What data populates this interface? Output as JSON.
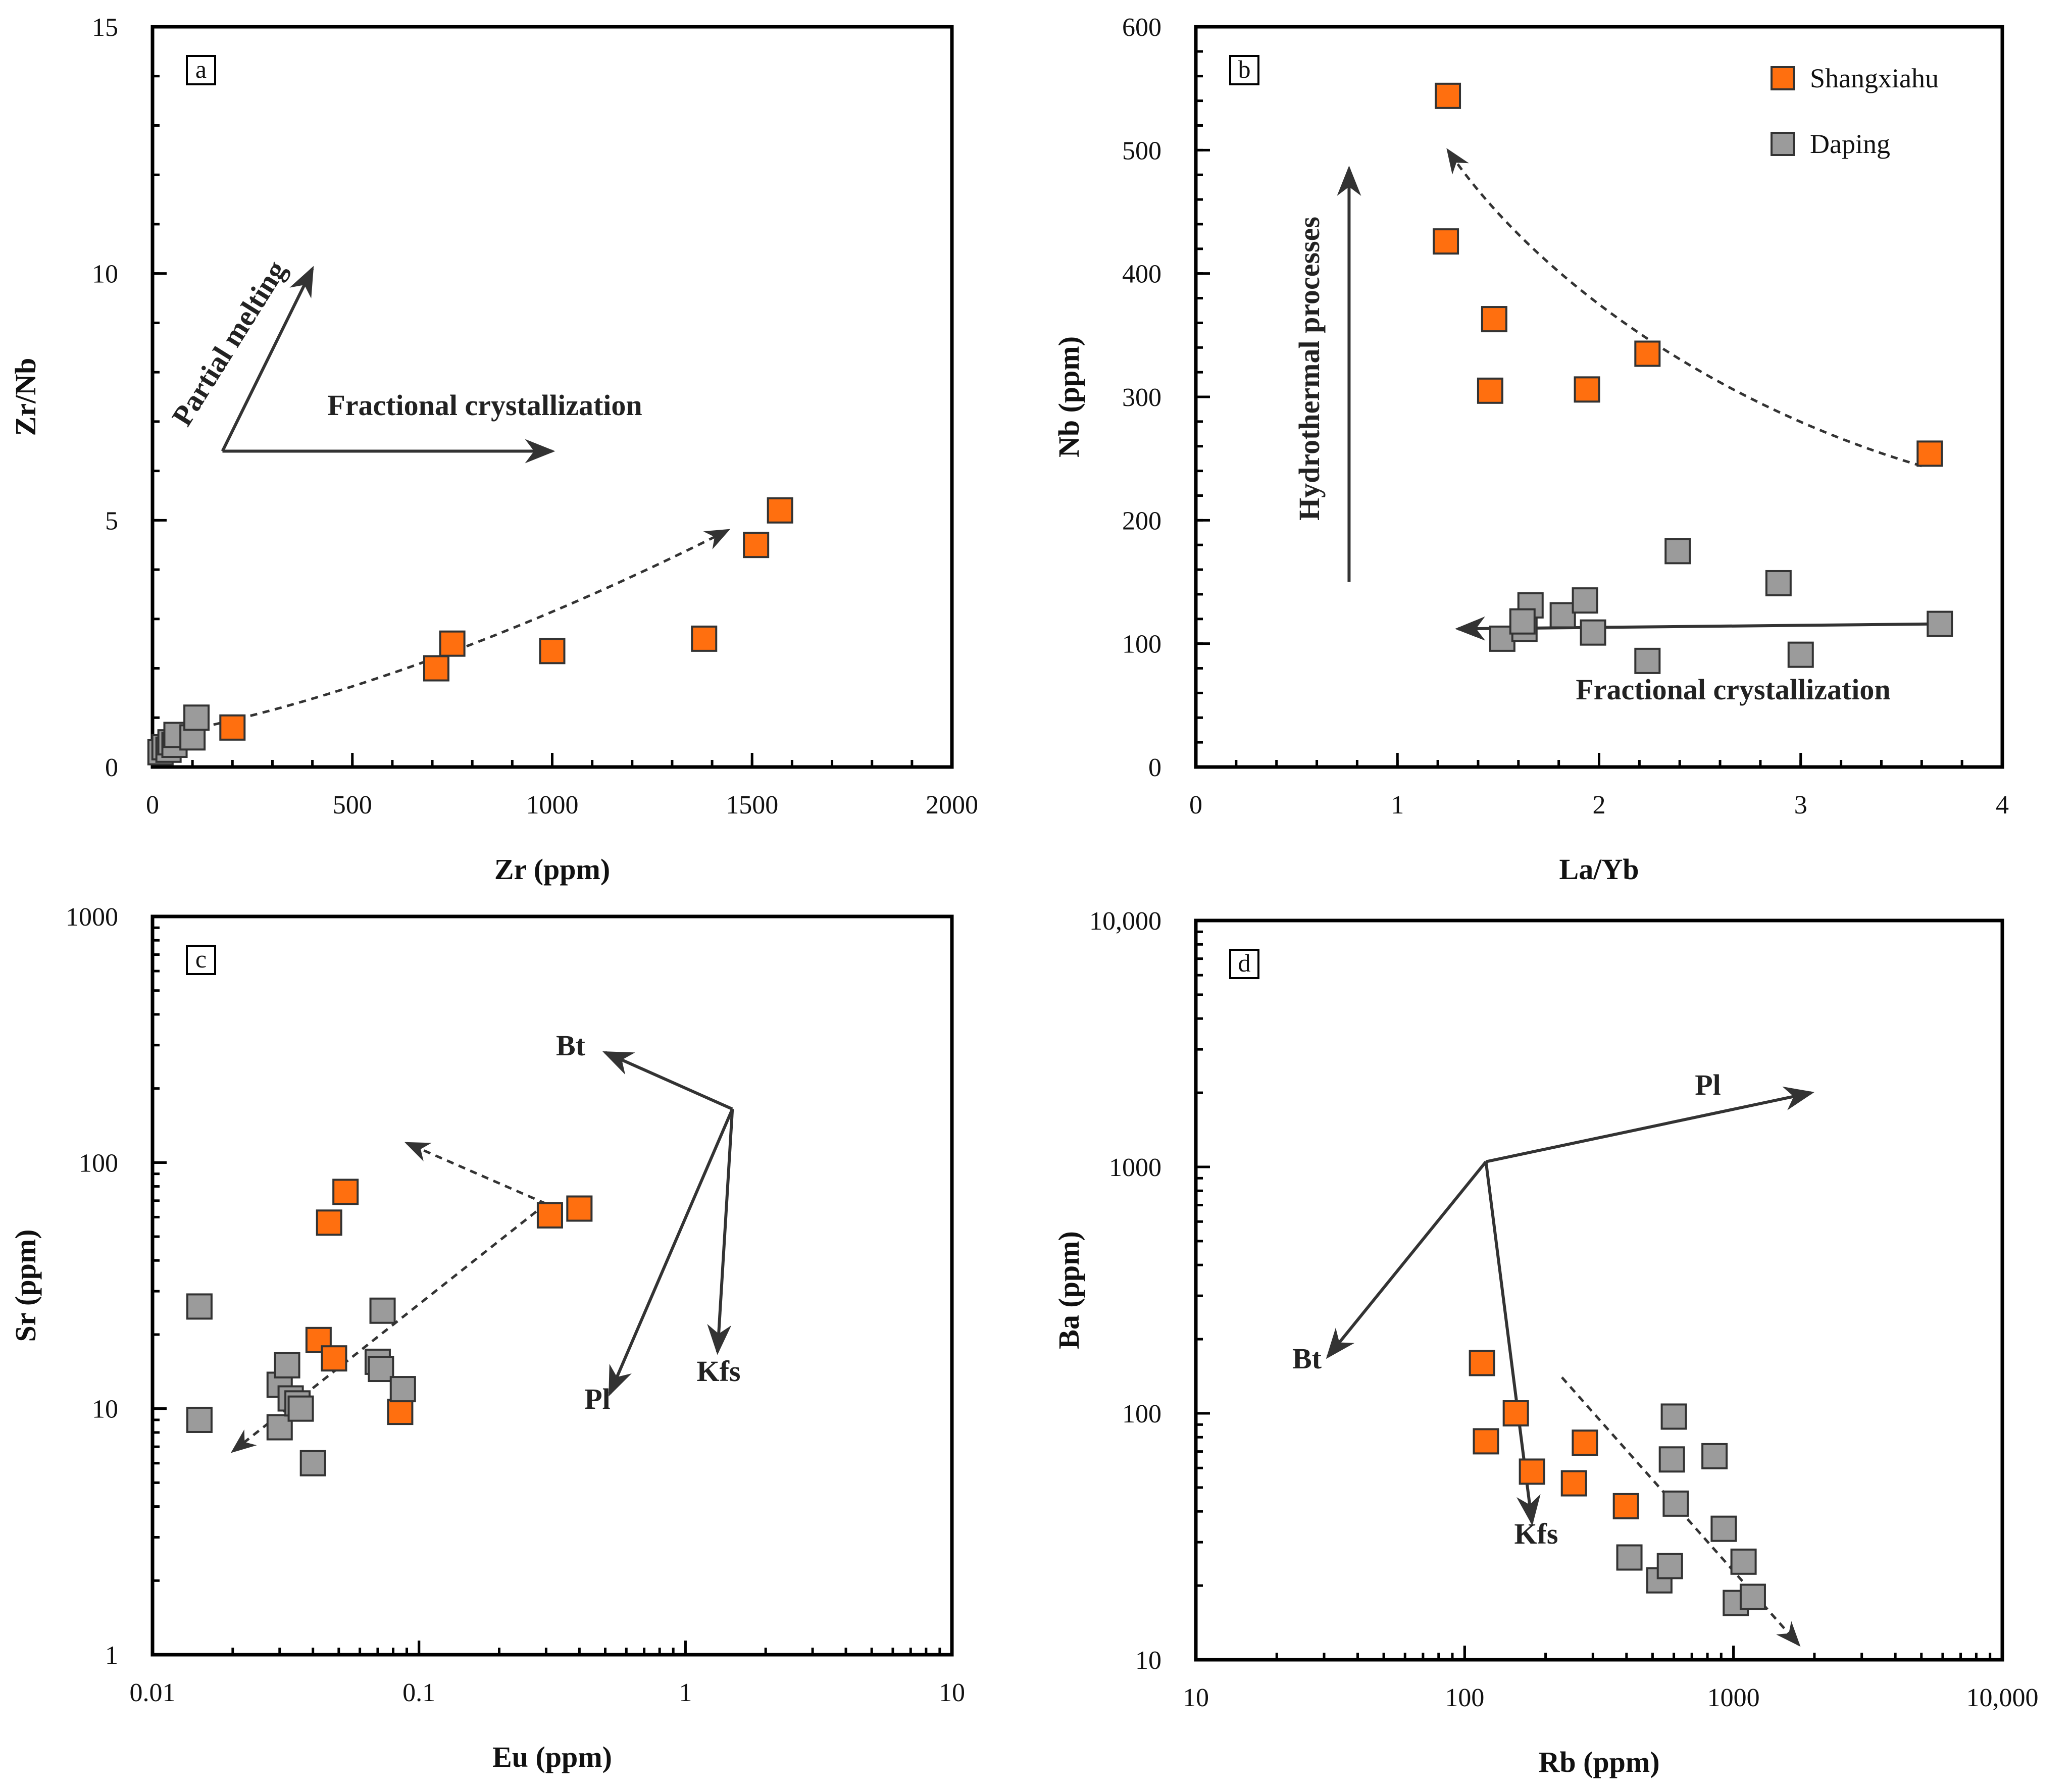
{
  "colors": {
    "shangxiahu": "#ff6f0f",
    "daping": "#9b9b9b",
    "marker_edge": "#333333",
    "arrow": "#333333"
  },
  "chart_data": [
    {
      "panel": "a",
      "type": "scatter",
      "xlabel": "Zr (ppm)",
      "ylabel": "Zr/Nb",
      "xscale": "linear",
      "yscale": "linear",
      "xlim": [
        0,
        2000
      ],
      "ylim": [
        0,
        15
      ],
      "xticks": [
        0,
        500,
        1000,
        1500,
        2000
      ],
      "xtick_labels": [
        "0",
        "500",
        "1000",
        "1500",
        "2000"
      ],
      "yticks": [
        0,
        5,
        10,
        15
      ],
      "ytick_labels": [
        "0",
        "5",
        "10",
        "15"
      ],
      "series": [
        {
          "name": "Shangxiahu",
          "x": [
            200,
            710,
            750,
            1000,
            1380,
            1510,
            1570
          ],
          "y": [
            0.8,
            2.0,
            2.5,
            2.35,
            2.6,
            4.5,
            5.2
          ]
        },
        {
          "name": "Daping",
          "x": [
            20,
            30,
            40,
            45,
            55,
            60,
            100,
            110
          ],
          "y": [
            0.3,
            0.4,
            0.35,
            0.5,
            0.45,
            0.65,
            0.6,
            1.0
          ]
        }
      ],
      "annotations": [
        {
          "text": "Partial melting",
          "kind": "arrow",
          "from": [
            175,
            6.4
          ],
          "to": [
            400,
            10.1
          ]
        },
        {
          "text": "Fractional crystallization",
          "kind": "arrow",
          "from": [
            175,
            6.4
          ],
          "to": [
            1000,
            6.4
          ]
        },
        {
          "text": "",
          "kind": "dashed-curve",
          "points": [
            [
              60,
              0.7
            ],
            [
              500,
              1.4
            ],
            [
              1000,
              3.0
            ],
            [
              1440,
              4.8
            ]
          ]
        }
      ]
    },
    {
      "panel": "b",
      "type": "scatter",
      "xlabel": "La/Yb",
      "ylabel": "Nb (ppm)",
      "xscale": "linear",
      "yscale": "linear",
      "xlim": [
        0,
        4
      ],
      "ylim": [
        0,
        600
      ],
      "xticks": [
        0,
        1,
        2,
        3,
        4
      ],
      "xtick_labels": [
        "0",
        "1",
        "2",
        "3",
        "4"
      ],
      "yticks": [
        0,
        100,
        200,
        300,
        400,
        500,
        600
      ],
      "ytick_labels": [
        "0",
        "100",
        "200",
        "300",
        "400",
        "500",
        "600"
      ],
      "legend": {
        "position": "top-right",
        "entries": [
          "Shangxiahu",
          "Daping"
        ]
      },
      "series": [
        {
          "name": "Shangxiahu",
          "x": [
            1.25,
            1.24,
            1.48,
            1.46,
            1.94,
            2.24,
            3.64
          ],
          "y": [
            544,
            426,
            363,
            305,
            306,
            335,
            254
          ]
        },
        {
          "name": "Daping",
          "x": [
            1.52,
            1.63,
            1.66,
            1.62,
            1.82,
            1.93,
            1.97,
            2.24,
            2.39,
            2.89,
            3.0,
            3.69
          ],
          "y": [
            104,
            112,
            131,
            118,
            123,
            135,
            109,
            86,
            175,
            149,
            91,
            116
          ]
        }
      ],
      "annotations": [
        {
          "text": "Hydrothermal processes",
          "kind": "arrow",
          "from": [
            0.76,
            150
          ],
          "to": [
            0.76,
            485
          ]
        },
        {
          "text": "Fractional crystallization",
          "kind": "arrow",
          "from": [
            3.7,
            116
          ],
          "to": [
            1.3,
            112
          ]
        },
        {
          "text": "",
          "kind": "dashed-curve",
          "points": [
            [
              3.6,
              244
            ],
            [
              2.6,
              292
            ],
            [
              1.7,
              392
            ],
            [
              1.25,
              500
            ]
          ]
        }
      ]
    },
    {
      "panel": "c",
      "type": "scatter",
      "xlabel": "Eu (ppm)",
      "ylabel": "Sr (ppm)",
      "xscale": "log",
      "yscale": "log",
      "xlim": [
        0.01,
        10
      ],
      "ylim": [
        1,
        1000
      ],
      "xticks": [
        0.01,
        0.1,
        1,
        10
      ],
      "xtick_labels": [
        "0.01",
        "0.1",
        "1",
        "10"
      ],
      "yticks": [
        1,
        10,
        100,
        1000
      ],
      "ytick_labels": [
        "1",
        "10",
        "100",
        "1000"
      ],
      "series": [
        {
          "name": "Shangxiahu",
          "x": [
            0.042,
            0.046,
            0.048,
            0.053,
            0.085,
            0.31,
            0.4
          ],
          "y": [
            19,
            57,
            16,
            76,
            9.7,
            61,
            65
          ]
        },
        {
          "name": "Daping",
          "x": [
            0.015,
            0.015,
            0.03,
            0.03,
            0.032,
            0.033,
            0.035,
            0.036,
            0.04,
            0.07,
            0.072,
            0.073,
            0.087
          ],
          "y": [
            26,
            9,
            8.4,
            12.5,
            15,
            11,
            10.5,
            10,
            6,
            15.5,
            14.5,
            25,
            12
          ]
        }
      ],
      "annotations": [
        {
          "text": "Bt",
          "kind": "arrow",
          "from": [
            1.5,
            165
          ],
          "to": [
            0.5,
            280
          ]
        },
        {
          "text": "Pl",
          "kind": "arrow",
          "from": [
            1.5,
            165
          ],
          "to": [
            0.52,
            11.5
          ]
        },
        {
          "text": "Kfs",
          "kind": "arrow",
          "from": [
            1.5,
            165
          ],
          "to": [
            1.32,
            17
          ]
        },
        {
          "text": "",
          "kind": "dashed-line",
          "points": [
            [
              0.3,
              68
            ],
            [
              0.09,
              120
            ]
          ]
        },
        {
          "text": "",
          "kind": "dashed-line",
          "points": [
            [
              0.3,
              68
            ],
            [
              0.02,
              6.7
            ]
          ]
        }
      ]
    },
    {
      "panel": "d",
      "type": "scatter",
      "xlabel": "Rb (ppm)",
      "ylabel": "Ba (ppm)",
      "xscale": "log",
      "yscale": "log",
      "xlim": [
        10,
        10000
      ],
      "ylim": [
        10,
        10000
      ],
      "xticks": [
        10,
        100,
        1000,
        10000
      ],
      "xtick_labels": [
        "10",
        "100",
        "1000",
        "10,000"
      ],
      "yticks": [
        10,
        100,
        1000,
        10000
      ],
      "ytick_labels": [
        "10",
        "100",
        "1000",
        "10,000"
      ],
      "series": [
        {
          "name": "Shangxiahu",
          "x": [
            116,
            120,
            155,
            178,
            255,
            280,
            398
          ],
          "y": [
            160,
            77,
            100,
            58,
            52,
            76,
            42
          ]
        },
        {
          "name": "Daping",
          "x": [
            410,
            530,
            580,
            590,
            600,
            610,
            850,
            920,
            1020,
            1090,
            1180
          ],
          "y": [
            26,
            21,
            24,
            65,
            97,
            43,
            67,
            34,
            17,
            25,
            18
          ]
        }
      ],
      "annotations": [
        {
          "text": "Pl",
          "kind": "arrow",
          "from": [
            120,
            1050
          ],
          "to": [
            1950,
            2000
          ]
        },
        {
          "text": "Bt",
          "kind": "arrow",
          "from": [
            120,
            1050
          ],
          "to": [
            31,
            170
          ]
        },
        {
          "text": "Kfs",
          "kind": "arrow",
          "from": [
            120,
            1050
          ],
          "to": [
            178,
            36
          ]
        },
        {
          "text": "",
          "kind": "dashed-line",
          "points": [
            [
              230,
              140
            ],
            [
              1750,
              11.5
            ]
          ]
        }
      ]
    }
  ]
}
